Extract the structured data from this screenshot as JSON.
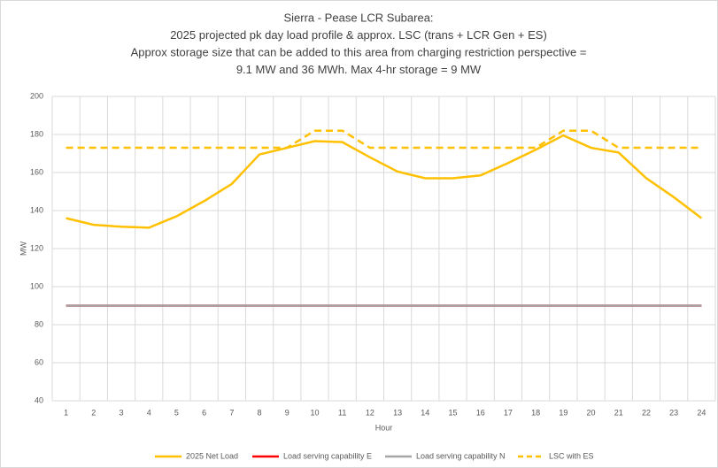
{
  "chart_data": {
    "type": "line",
    "title": [
      "Sierra - Pease LCR Subarea:",
      "2025 projected pk day load profile & approx. LSC (trans + LCR Gen + ES)",
      "Approx storage size that can be added to this area from charging restriction perspective =",
      "9.1 MW and 36 MWh. Max 4-hr storage = 9 MW"
    ],
    "x_label": "Hour",
    "y_label": "MW",
    "categories": [
      "1",
      "2",
      "3",
      "4",
      "5",
      "6",
      "7",
      "8",
      "9",
      "10",
      "11",
      "12",
      "13",
      "14",
      "15",
      "16",
      "17",
      "18",
      "19",
      "20",
      "21",
      "22",
      "23",
      "24"
    ],
    "series": [
      {
        "name": "2025 Net Load",
        "color": "#ffc000",
        "dash": false,
        "values": [
          136,
          132.5,
          131.5,
          131,
          137,
          145,
          154,
          169.5,
          173,
          176.5,
          176,
          168,
          160.5,
          157,
          157,
          158.5,
          165,
          172,
          179.5,
          173,
          170.5,
          157,
          147,
          136
        ]
      },
      {
        "name": "Load serving capability E",
        "color": "#ff0000",
        "dash": false,
        "values": [
          90,
          90,
          90,
          90,
          90,
          90,
          90,
          90,
          90,
          90,
          90,
          90,
          90,
          90,
          90,
          90,
          90,
          90,
          90,
          90,
          90,
          90,
          90,
          90
        ]
      },
      {
        "name": "Load serving capability N",
        "color": "#a5a5a5",
        "dash": false,
        "values": [
          90,
          90,
          90,
          90,
          90,
          90,
          90,
          90,
          90,
          90,
          90,
          90,
          90,
          90,
          90,
          90,
          90,
          90,
          90,
          90,
          90,
          90,
          90,
          90
        ]
      },
      {
        "name": "LSC with ES",
        "color": "#ffc000",
        "dash": true,
        "values": [
          173,
          173,
          173,
          173,
          173,
          173,
          173,
          173,
          173,
          182,
          182,
          173,
          173,
          173,
          173,
          173,
          173,
          173,
          182,
          182,
          173,
          173,
          173,
          173
        ]
      }
    ],
    "ylim": [
      40,
      200
    ],
    "yticks": [
      40,
      60,
      80,
      100,
      120,
      140,
      160,
      180,
      200
    ],
    "grid": true,
    "legend": "bottom"
  }
}
